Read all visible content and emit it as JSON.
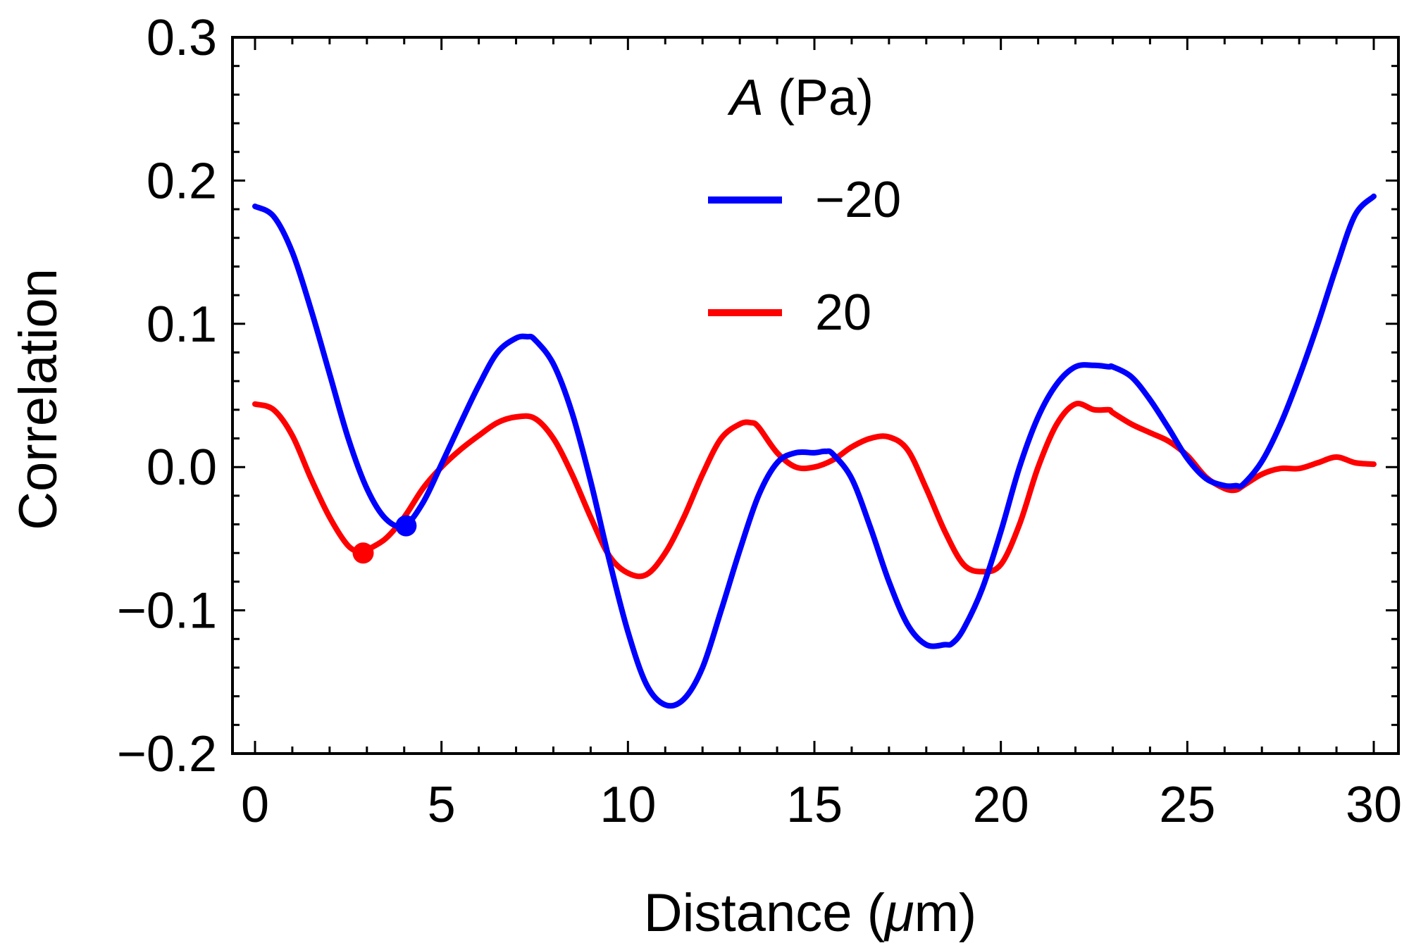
{
  "chart_data": {
    "type": "line",
    "title": "",
    "xlabel": "Distance (μm)",
    "xlabel_prefix": "Distance (",
    "xlabel_unit_symbol": "μ",
    "xlabel_suffix": "m)",
    "ylabel": "Correlation",
    "xlim": [
      0,
      30
    ],
    "ylim": [
      -0.2,
      0.3
    ],
    "x_ticks": [
      0,
      5,
      10,
      15,
      20,
      25,
      30
    ],
    "x_tick_labels": [
      "0",
      "5",
      "10",
      "15",
      "20",
      "25",
      "30"
    ],
    "y_ticks": [
      -0.2,
      -0.1,
      0.0,
      0.1,
      0.2,
      0.3
    ],
    "y_tick_labels": [
      "−0.2",
      "−0.1",
      "0.0",
      "0.1",
      "0.2",
      "0.3"
    ],
    "legend": {
      "title_symbol": "A",
      "title_unit": " (Pa)",
      "placement": "top-center"
    },
    "series": [
      {
        "name": "−20",
        "color": "#0000ff",
        "x": [
          0,
          0.5,
          1,
          1.5,
          2,
          2.5,
          3,
          3.5,
          4,
          4.5,
          5,
          5.5,
          6,
          6.5,
          7,
          7.3,
          7.5,
          8,
          8.5,
          9,
          9.5,
          10,
          10.5,
          11,
          11.5,
          12,
          12.5,
          13,
          13.5,
          14,
          14.5,
          15,
          15.3,
          15.5,
          16,
          16.5,
          17,
          17.5,
          18,
          18.5,
          18.7,
          19,
          19.5,
          20,
          20.5,
          21,
          21.5,
          22,
          22.5,
          22.9,
          23,
          23.5,
          24,
          24.5,
          25,
          25.5,
          26,
          26.3,
          26.5,
          27,
          27.5,
          28,
          28.5,
          29,
          29.5,
          30
        ],
        "y": [
          0.182,
          0.175,
          0.15,
          0.11,
          0.065,
          0.02,
          -0.015,
          -0.036,
          -0.041,
          -0.025,
          0.002,
          0.03,
          0.057,
          0.08,
          0.09,
          0.091,
          0.089,
          0.072,
          0.038,
          -0.01,
          -0.065,
          -0.115,
          -0.152,
          -0.166,
          -0.162,
          -0.14,
          -0.1,
          -0.058,
          -0.02,
          0.003,
          0.01,
          0.01,
          0.011,
          0.009,
          -0.008,
          -0.042,
          -0.08,
          -0.11,
          -0.124,
          -0.124,
          -0.123,
          -0.113,
          -0.085,
          -0.045,
          0.0,
          0.035,
          0.058,
          0.07,
          0.071,
          0.07,
          0.07,
          0.063,
          0.047,
          0.027,
          0.006,
          -0.008,
          -0.013,
          -0.013,
          -0.012,
          0.004,
          0.03,
          0.063,
          0.1,
          0.14,
          0.176,
          0.189
        ]
      },
      {
        "name": "20",
        "color": "#ff0000",
        "x": [
          0,
          0.5,
          1,
          1.5,
          2,
          2.5,
          2.9,
          3,
          3.5,
          4,
          4.5,
          5,
          5.5,
          6,
          6.5,
          7,
          7.5,
          8,
          8.5,
          9,
          9.5,
          10,
          10.5,
          11,
          11.5,
          12,
          12.5,
          13,
          13.3,
          13.5,
          14,
          14.5,
          15,
          15.5,
          16,
          16.5,
          17,
          17.5,
          18,
          18.5,
          19,
          19.5,
          20,
          20.5,
          21,
          21.5,
          22,
          22.5,
          22.9,
          23,
          23.5,
          24,
          24.5,
          25,
          25.5,
          26,
          26.3,
          26.5,
          27,
          27.5,
          28,
          28.5,
          29,
          29.5,
          30
        ],
        "y": [
          0.044,
          0.04,
          0.022,
          -0.008,
          -0.035,
          -0.055,
          -0.06,
          -0.058,
          -0.05,
          -0.035,
          -0.015,
          0.0,
          0.012,
          0.022,
          0.031,
          0.035,
          0.034,
          0.02,
          -0.005,
          -0.035,
          -0.062,
          -0.074,
          -0.075,
          -0.06,
          -0.035,
          -0.005,
          0.02,
          0.03,
          0.031,
          0.028,
          0.01,
          0.0,
          0.0,
          0.005,
          0.014,
          0.02,
          0.021,
          0.012,
          -0.015,
          -0.045,
          -0.068,
          -0.073,
          -0.068,
          -0.04,
          0.0,
          0.03,
          0.044,
          0.04,
          0.04,
          0.038,
          0.03,
          0.024,
          0.018,
          0.008,
          -0.007,
          -0.015,
          -0.016,
          -0.013,
          -0.005,
          -0.001,
          -0.001,
          0.003,
          0.007,
          0.003,
          0.002
        ]
      }
    ],
    "markers": [
      {
        "series": "20",
        "x": 2.9,
        "y": -0.06,
        "color": "#ff0000"
      },
      {
        "series": "−20",
        "x": 4.05,
        "y": -0.041,
        "color": "#0000ff"
      }
    ]
  }
}
